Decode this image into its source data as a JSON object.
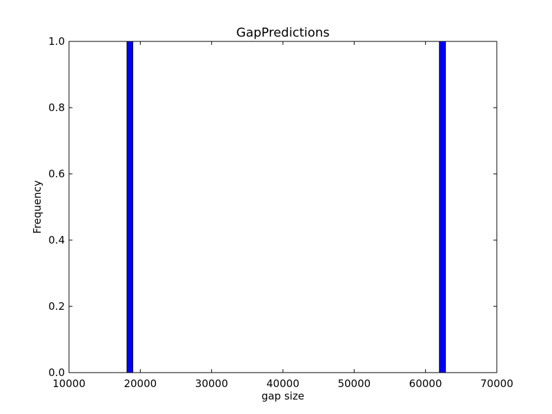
{
  "chart_data": {
    "type": "bar",
    "title": "GapPredictions",
    "xlabel": "gap size",
    "ylabel": "Frequency",
    "xlim": [
      10000,
      70000
    ],
    "ylim": [
      0,
      1
    ],
    "x_ticks": [
      "10000",
      "20000",
      "30000",
      "40000",
      "50000",
      "60000",
      "70000"
    ],
    "y_ticks": [
      "0.0",
      "0.2",
      "0.4",
      "0.6",
      "0.8",
      "1.0"
    ],
    "grid": false,
    "bars": [
      {
        "x_start": 18130,
        "x_end": 18950,
        "value": 1
      },
      {
        "x_start": 61950,
        "x_end": 62800,
        "value": 1
      }
    ],
    "colors": {
      "bar": "#0000ff",
      "bar_edge": "#000000",
      "axes": "#000000",
      "background": "#ffffff"
    }
  }
}
